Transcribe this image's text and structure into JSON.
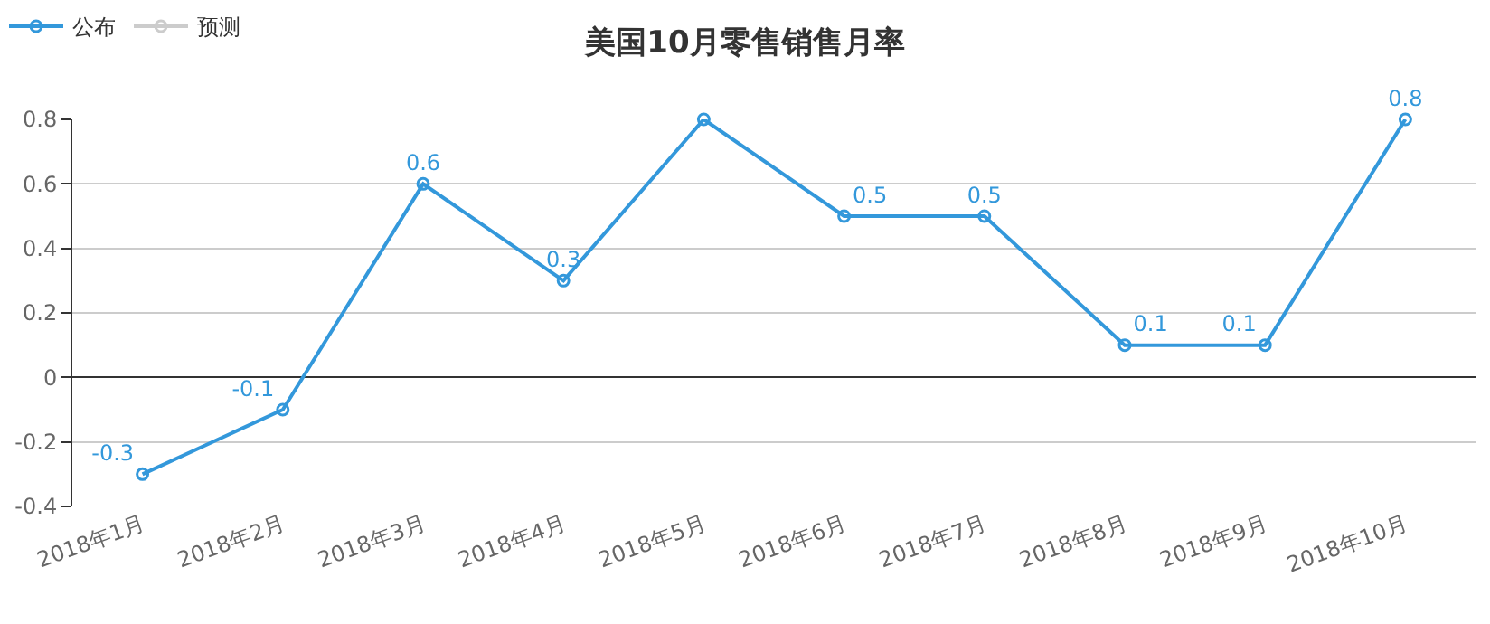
{
  "chart_data": {
    "type": "line",
    "title": "美国10月零售销售月率",
    "categories": [
      "2018年1月",
      "2018年2月",
      "2018年3月",
      "2018年4月",
      "2018年5月",
      "2018年6月",
      "2018年7月",
      "2018年8月",
      "2018年9月",
      "2018年10月"
    ],
    "series": [
      {
        "name": "公布",
        "color": "#3398db",
        "values": [
          -0.3,
          -0.1,
          0.6,
          0.3,
          0.8,
          0.5,
          0.5,
          0.1,
          0.1,
          0.8
        ],
        "value_labels": [
          "-0.3",
          "-0.1",
          "0.6",
          "0.3",
          null,
          "0.5",
          "0.5",
          "0.1",
          "0.1",
          "0.8"
        ]
      },
      {
        "name": "预测",
        "color": "#cccccc",
        "values": [
          null,
          null,
          null,
          null,
          null,
          null,
          null,
          null,
          null,
          null
        ]
      }
    ],
    "ylim": [
      -0.4,
      0.8
    ],
    "yticks": [
      -0.4,
      -0.2,
      0,
      0.2,
      0.4,
      0.6,
      0.8
    ],
    "grid": "y",
    "legend": "top left",
    "marker": "circle",
    "line_style": "solid"
  }
}
